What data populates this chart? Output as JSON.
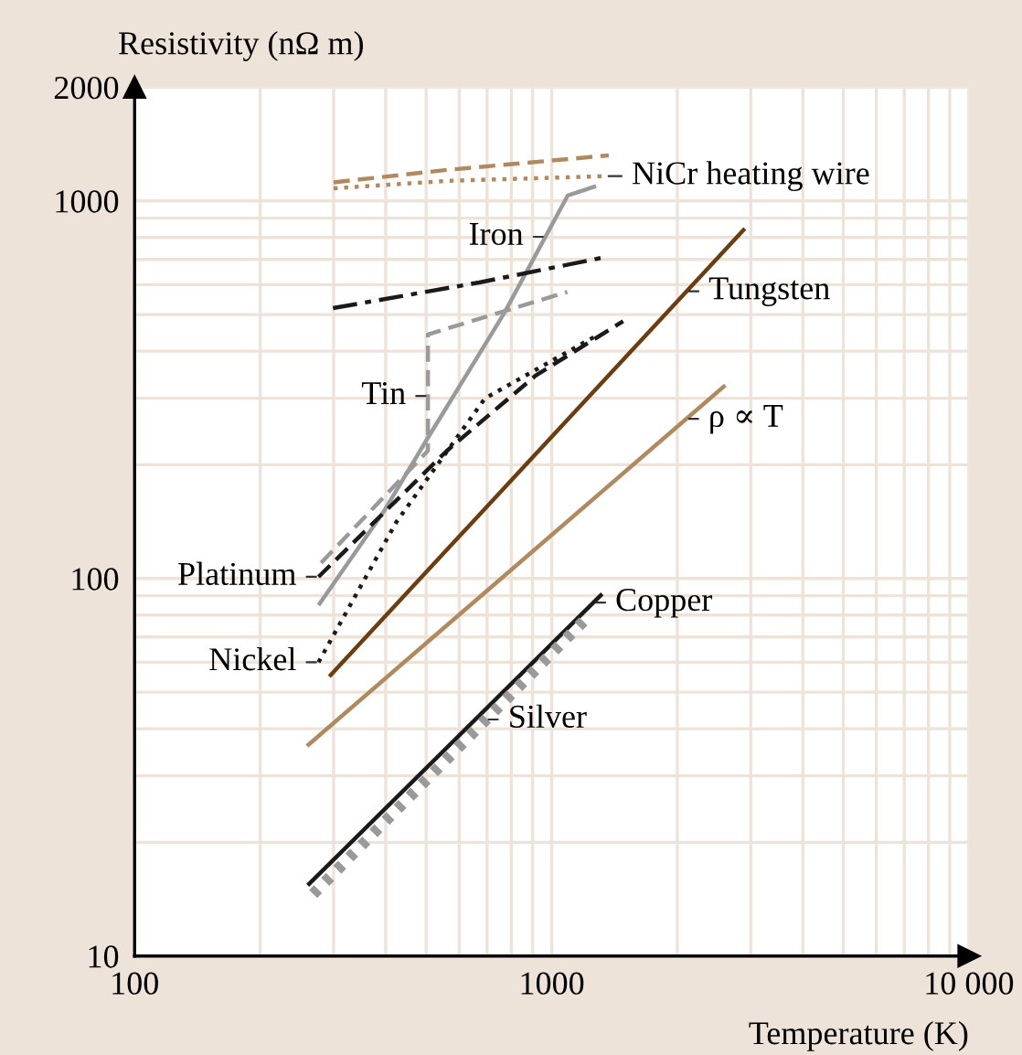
{
  "chart_data": {
    "type": "line",
    "xlabel": "Temperature (K)",
    "ylabel": "Resistivity (nΩ m)",
    "log": "xy",
    "grid": true,
    "xlim": [
      100,
      10000
    ],
    "ylim": [
      10,
      2000
    ],
    "xticks": [
      100,
      1000,
      {
        "value": 10000,
        "label": "10 000"
      }
    ],
    "yticks": [
      10,
      100,
      1000,
      2000
    ],
    "series": [
      {
        "color": "#b08a5e",
        "line_style": "dashed",
        "x": [
          300,
          561,
          1370
        ],
        "values": [
          1120,
          1208,
          1320
        ]
      },
      {
        "name": "NiCr heating wire",
        "color": "#b08a5e",
        "line_style": "dotted",
        "x": [
          300,
          561,
          1350
        ],
        "values": [
          1080,
          1130,
          1163
        ]
      },
      {
        "name": "Iron",
        "color": "#9a9a9a",
        "line_style": "solid",
        "x": [
          276,
          395,
          505,
          769,
          1092,
          1277
        ],
        "values": [
          85,
          150,
          236,
          504,
          1033,
          1094
        ]
      },
      {
        "color": "#1a1a1a",
        "line_style": "dashdot",
        "x": [
          299,
          670,
          1321
        ],
        "values": [
          520,
          608,
          707
        ]
      },
      {
        "name": "Tin",
        "color": "#9a9a9a",
        "line_style": "dashed",
        "x": [
          280,
          505,
          505,
          1090
        ],
        "values": [
          110,
          218,
          443,
          574
        ]
      },
      {
        "name": "Platinum",
        "color": "#1a1a1a",
        "line_style": "dashed",
        "x": [
          276,
          561,
          916,
          1483
        ],
        "values": [
          101,
          218,
          345,
          480
        ]
      },
      {
        "name": "Nickel",
        "color": "#1a1a1a",
        "line_style": "dotted",
        "x": [
          276,
          424,
          692,
          1277
        ],
        "values": [
          60,
          141,
          300,
          439
        ]
      },
      {
        "name": "Tungsten",
        "color": "#6b3d10",
        "line_style": "solid",
        "x": [
          293,
          2904
        ],
        "values": [
          55,
          845
        ]
      },
      {
        "name": "ρ ∝ T",
        "color": "#b08a5e",
        "line_style": "solid",
        "x": [
          259,
          2607
        ],
        "values": [
          36,
          325
        ]
      },
      {
        "name": "Copper",
        "color": "#1a1a1a",
        "line_style": "solid",
        "x": [
          260,
          1321
        ],
        "values": [
          15.4,
          91
        ]
      },
      {
        "name": "Silver",
        "color": "#9a9a9a",
        "line_style": "hatched",
        "x": [
          268,
          1191
        ],
        "values": [
          14.6,
          77
        ]
      }
    ]
  }
}
